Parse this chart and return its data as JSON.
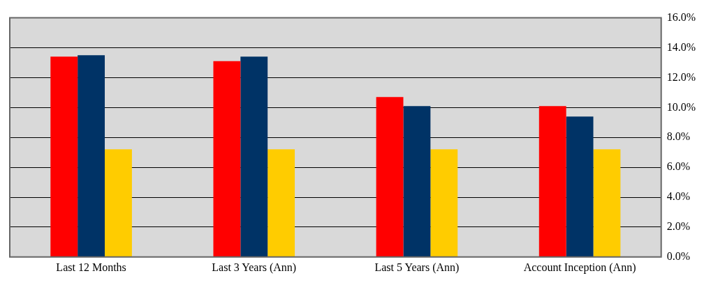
{
  "chart_data": {
    "type": "bar",
    "categories": [
      "Last 12 Months",
      "Last 3 Years (Ann)",
      "Last 5 Years (Ann)",
      "Account Inception (Ann)"
    ],
    "series": [
      {
        "color": "#ff0000",
        "values": [
          13.4,
          13.1,
          10.7,
          10.1
        ]
      },
      {
        "color": "#003366",
        "values": [
          13.5,
          13.4,
          10.1,
          9.4
        ]
      },
      {
        "color": "#ffcc00",
        "values": [
          7.2,
          7.2,
          7.2,
          7.2
        ]
      }
    ],
    "ylim": [
      0,
      16
    ],
    "yticks": [
      {
        "value": 0,
        "label": "0.0%"
      },
      {
        "value": 2,
        "label": "2.0%"
      },
      {
        "value": 4,
        "label": "4.0%"
      },
      {
        "value": 6,
        "label": "6.0%"
      },
      {
        "value": 8,
        "label": "8.0%"
      },
      {
        "value": 10,
        "label": "10.0%"
      },
      {
        "value": 12,
        "label": "12.0%"
      },
      {
        "value": 14,
        "label": "14.0%"
      },
      {
        "value": 16,
        "label": "16.0%"
      }
    ],
    "grid": "y",
    "legend": false
  }
}
